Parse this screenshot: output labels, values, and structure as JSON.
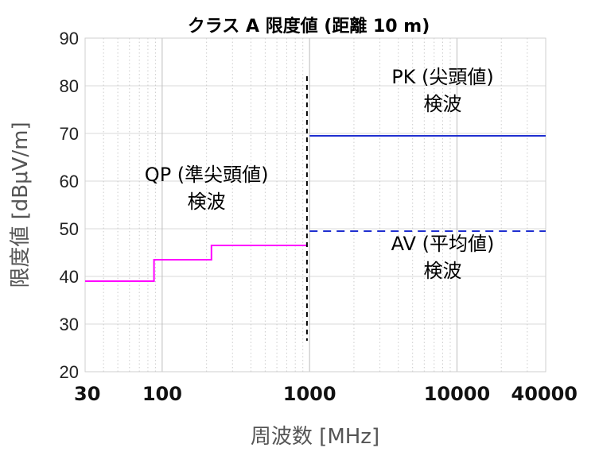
{
  "chart_data": {
    "type": "line",
    "title": "クラス A 限度値 (距離 10 m)",
    "xlabel": "周波数 [MHz]",
    "ylabel": "限度値 [dBμV/m]",
    "x_scale": "log",
    "xlim": [
      30,
      40000
    ],
    "ylim": [
      20,
      90
    ],
    "x_ticks": [
      30,
      100,
      1000,
      10000,
      40000
    ],
    "x_tick_labels": [
      "30",
      "100",
      "1000",
      "10000",
      "40000"
    ],
    "y_ticks": [
      20,
      30,
      40,
      50,
      60,
      70,
      80,
      90
    ],
    "y_tick_labels": [
      "20",
      "30",
      "40",
      "50",
      "60",
      "70",
      "80",
      "90"
    ],
    "grid": true,
    "series": [
      {
        "key": "qp",
        "style": "step",
        "color": "#ff00ff",
        "x": [
          30,
          88,
          88,
          216,
          216,
          960
        ],
        "y": [
          39,
          39,
          43.5,
          43.5,
          46.5,
          46.5
        ]
      },
      {
        "key": "pk",
        "style": "solid",
        "color": "#1f2fd0",
        "x": [
          1000,
          40000
        ],
        "y": [
          69.5,
          69.5
        ]
      },
      {
        "key": "av",
        "style": "dashed",
        "color": "#1f2fd0",
        "x": [
          1000,
          40000
        ],
        "y": [
          49.5,
          49.5
        ]
      }
    ],
    "divider": {
      "x": 960,
      "y": [
        26.5,
        82
      ],
      "color": "#000000"
    },
    "annotations": [
      {
        "key": "qp",
        "lines": [
          "QP (準尖頭値)",
          "検波"
        ],
        "x": 200,
        "y": 60
      },
      {
        "key": "pk",
        "lines": [
          "PK (尖頭値)",
          "検波"
        ],
        "x": 8000,
        "y": 80.5
      },
      {
        "key": "av",
        "lines": [
          "AV (平均値)",
          "検波"
        ],
        "x": 8000,
        "y": 45.5
      }
    ]
  }
}
